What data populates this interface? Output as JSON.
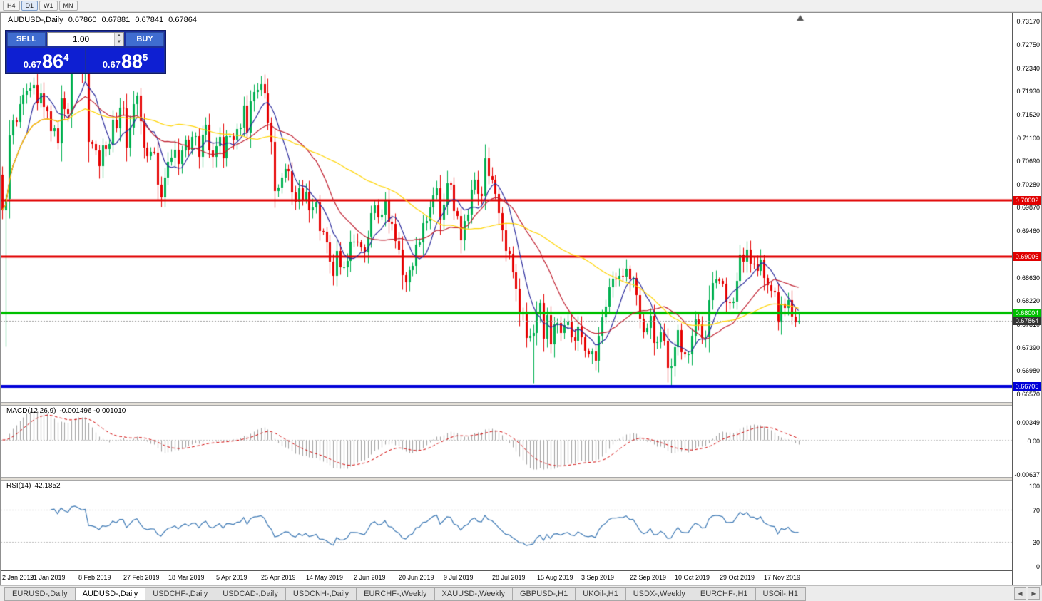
{
  "toolbar": {
    "timeframes": [
      {
        "label": "H4",
        "active": false
      },
      {
        "label": "D1",
        "active": true
      },
      {
        "label": "W1",
        "active": false
      },
      {
        "label": "MN",
        "active": false
      }
    ]
  },
  "header": {
    "title": "AUDUSD-,Daily",
    "open": "0.67860",
    "high": "0.67881",
    "low": "0.67841",
    "close": "0.67864"
  },
  "trade_panel": {
    "sell_label": "SELL",
    "buy_label": "BUY",
    "volume": "1.00",
    "sell_price_prefix": "0.67",
    "sell_price_big": "86",
    "sell_price_sup": "4",
    "buy_price_prefix": "0.67",
    "buy_price_big": "88",
    "buy_price_sup": "5"
  },
  "chart_data": {
    "type": "candlestick",
    "symbol": "AUDUSD-,Daily",
    "ylim": [
      0.6638,
      0.7332
    ],
    "first_open": 0.7045,
    "closes": [
      0.6983,
      0.7003,
      0.7115,
      0.7141,
      0.7139,
      0.7171,
      0.7187,
      0.7195,
      0.7198,
      0.7205,
      0.7172,
      0.719,
      0.7165,
      0.7158,
      0.7122,
      0.7128,
      0.7101,
      0.7181,
      0.7162,
      0.7153,
      0.7235,
      0.725,
      0.724,
      0.7226,
      0.7234,
      0.7104,
      0.71,
      0.7088,
      0.7061,
      0.7097,
      0.7091,
      0.71,
      0.7143,
      0.7127,
      0.7164,
      0.7163,
      0.7093,
      0.7129,
      0.7171,
      0.7186,
      0.714,
      0.7094,
      0.7079,
      0.7086,
      0.7085,
      0.7028,
      0.7005,
      0.704,
      0.7068,
      0.7076,
      0.709,
      0.7064,
      0.7089,
      0.7107,
      0.709,
      0.7112,
      0.7114,
      0.7077,
      0.7116,
      0.7134,
      0.7089,
      0.7077,
      0.7096,
      0.7113,
      0.7074,
      0.7114,
      0.7114,
      0.7107,
      0.7126,
      0.7129,
      0.7168,
      0.712,
      0.7175,
      0.7192,
      0.7196,
      0.7206,
      0.719,
      0.7138,
      0.7104,
      0.7017,
      0.7023,
      0.704,
      0.7056,
      0.7052,
      0.7014,
      0.6998,
      0.7021,
      0.7001,
      0.7015,
      0.6982,
      0.6988,
      0.6996,
      0.6946,
      0.6944,
      0.6926,
      0.6892,
      0.6866,
      0.6911,
      0.6881,
      0.6882,
      0.6893,
      0.6927,
      0.6927,
      0.6926,
      0.6917,
      0.6908,
      0.6936,
      0.6977,
      0.6991,
      0.697,
      0.6975,
      0.7,
      0.6962,
      0.6958,
      0.6928,
      0.6913,
      0.6868,
      0.6855,
      0.6876,
      0.6884,
      0.6922,
      0.6926,
      0.696,
      0.6964,
      0.6987,
      0.7009,
      0.7021,
      0.6966,
      0.6993,
      0.7031,
      0.7028,
      0.6981,
      0.6972,
      0.693,
      0.6963,
      0.6975,
      0.7019,
      0.7037,
      0.7012,
      0.7008,
      0.7074,
      0.7043,
      0.7037,
      0.7011,
      0.6978,
      0.6947,
      0.691,
      0.6905,
      0.6873,
      0.6844,
      0.68,
      0.6799,
      0.6757,
      0.6761,
      0.6766,
      0.68,
      0.6818,
      0.6755,
      0.6797,
      0.6745,
      0.678,
      0.6783,
      0.6766,
      0.6779,
      0.6786,
      0.6758,
      0.6751,
      0.6777,
      0.6758,
      0.6734,
      0.6728,
      0.6733,
      0.6716,
      0.6761,
      0.6793,
      0.6812,
      0.6846,
      0.6861,
      0.686,
      0.6866,
      0.6865,
      0.6879,
      0.686,
      0.6862,
      0.6832,
      0.6791,
      0.6767,
      0.6774,
      0.6796,
      0.6748,
      0.6749,
      0.6767,
      0.6751,
      0.6704,
      0.6706,
      0.674,
      0.677,
      0.6732,
      0.6727,
      0.6727,
      0.676,
      0.679,
      0.678,
      0.6756,
      0.6758,
      0.6824,
      0.6854,
      0.686,
      0.6858,
      0.6852,
      0.682,
      0.6819,
      0.6821,
      0.6857,
      0.6904,
      0.6891,
      0.6913,
      0.6888,
      0.6887,
      0.6875,
      0.6895,
      0.6862,
      0.685,
      0.684,
      0.6837,
      0.6785,
      0.6817,
      0.681,
      0.6824,
      0.6795,
      0.6785,
      0.67864
    ],
    "low_overrides": {
      "1": 0.6741,
      "154": 0.6677,
      "194": 0.66705
    },
    "y_ticks": [
      0.7317,
      0.7275,
      0.7234,
      0.7193,
      0.7152,
      0.711,
      0.7069,
      0.7028,
      0.6987,
      0.6946,
      0.6904,
      0.6863,
      0.6822,
      0.6781,
      0.6739,
      0.6698,
      0.6657
    ],
    "h_lines": [
      {
        "value": 0.70002,
        "label": "0.70002",
        "color": "#e00000",
        "width": 3
      },
      {
        "value": 0.69006,
        "label": "0.69006",
        "color": "#e00000",
        "width": 3
      },
      {
        "value": 0.68004,
        "label": "0.68004",
        "color": "#00c000",
        "width": 4
      },
      {
        "value": 0.66705,
        "label": "0.66705",
        "color": "#0000d8",
        "width": 4
      }
    ],
    "current_price": {
      "value": 0.67864,
      "label": "0.67864",
      "badge_color": "#333333"
    },
    "x_labels": [
      {
        "label": "2 Jan 2019",
        "i": 0
      },
      {
        "label": "21 Jan 2019",
        "i": 13
      },
      {
        "label": "8 Feb 2019",
        "i": 27
      },
      {
        "label": "27 Feb 2019",
        "i": 40
      },
      {
        "label": "18 Mar 2019",
        "i": 53
      },
      {
        "label": "5 Apr 2019",
        "i": 67
      },
      {
        "label": "25 Apr 2019",
        "i": 80
      },
      {
        "label": "14 May 2019",
        "i": 93
      },
      {
        "label": "2 Jun 2019",
        "i": 107
      },
      {
        "label": "20 Jun 2019",
        "i": 120
      },
      {
        "label": "9 Jul 2019",
        "i": 133
      },
      {
        "label": "28 Jul 2019",
        "i": 147
      },
      {
        "label": "15 Aug 2019",
        "i": 160
      },
      {
        "label": "3 Sep 2019",
        "i": 173
      },
      {
        "label": "22 Sep 2019",
        "i": 187
      },
      {
        "label": "10 Oct 2019",
        "i": 200
      },
      {
        "label": "29 Oct 2019",
        "i": 213
      },
      {
        "label": "17 Nov 2019",
        "i": 226
      }
    ],
    "moving_averages": [
      {
        "period": 8,
        "color": "#2a2a9c"
      },
      {
        "period": 20,
        "color": "#c02030"
      },
      {
        "period": 50,
        "color": "#ffd400"
      }
    ],
    "candle_colors": {
      "up": "#00b050",
      "down": "#e60000"
    }
  },
  "macd": {
    "label": "MACD(12,26,9)",
    "values_text": "-0.001496 -0.001010",
    "fast": 12,
    "slow": 26,
    "signal": 9,
    "ticks": [
      {
        "label": "0.00349",
        "v": 0.00349
      },
      {
        "label": "0.00",
        "v": 0
      },
      {
        "label": "-0.00637",
        "v": -0.00637
      }
    ],
    "hist_color": "#a0a0a0",
    "signal_color": "#d00000"
  },
  "rsi": {
    "label": "RSI(14)",
    "value_text": "42.1852",
    "period": 14,
    "ticks": [
      {
        "label": "100",
        "v": 100
      },
      {
        "label": "70",
        "v": 70
      },
      {
        "label": "30",
        "v": 30
      },
      {
        "label": "0",
        "v": 0
      }
    ],
    "levels": [
      70,
      30
    ],
    "color": "#3c78b4"
  },
  "tabs": [
    {
      "label": "EURUSD-,Daily",
      "active": false
    },
    {
      "label": "AUDUSD-,Daily",
      "active": true
    },
    {
      "label": "USDCHF-,Daily",
      "active": false
    },
    {
      "label": "USDCAD-,Daily",
      "active": false
    },
    {
      "label": "USDCNH-,Daily",
      "active": false
    },
    {
      "label": "EURCHF-,Weekly",
      "active": false
    },
    {
      "label": "XAUUSD-,Weekly",
      "active": false
    },
    {
      "label": "GBPUSD-,H1",
      "active": false
    },
    {
      "label": "UKOil-,H1",
      "active": false
    },
    {
      "label": "USDX-,Weekly",
      "active": false
    },
    {
      "label": "EURCHF-,H1",
      "active": false
    },
    {
      "label": "USOil-,H1",
      "active": false
    }
  ]
}
